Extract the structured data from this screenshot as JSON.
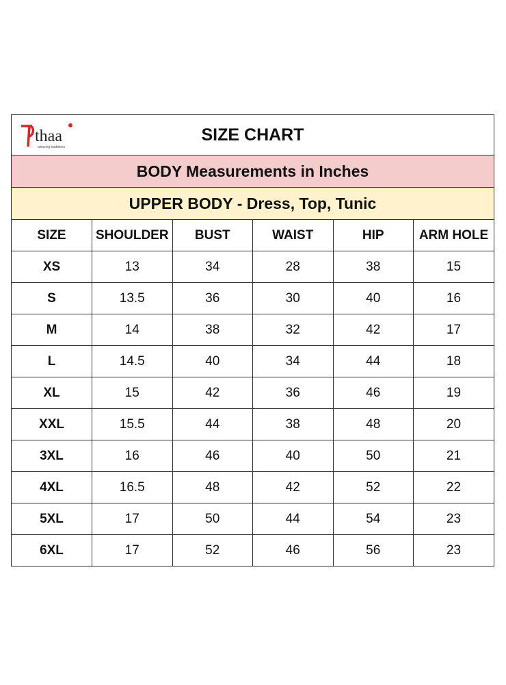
{
  "brand": {
    "logo_text": "प्thaa",
    "tagline": "weaving traditions",
    "accent_color": "#d7262b"
  },
  "title": "SIZE CHART",
  "subtitle": "BODY Measurements in Inches",
  "section": "UPPER BODY - Dress, Top, Tunic",
  "colors": {
    "subtitle_bg": "#f4cccc",
    "section_bg": "#fff2cc"
  },
  "columns": [
    "SIZE",
    "SHOULDER",
    "BUST",
    "WAIST",
    "HIP",
    "ARM HOLE"
  ],
  "rows": [
    [
      "XS",
      "13",
      "34",
      "28",
      "38",
      "15"
    ],
    [
      "S",
      "13.5",
      "36",
      "30",
      "40",
      "16"
    ],
    [
      "M",
      "14",
      "38",
      "32",
      "42",
      "17"
    ],
    [
      "L",
      "14.5",
      "40",
      "34",
      "44",
      "18"
    ],
    [
      "XL",
      "15",
      "42",
      "36",
      "46",
      "19"
    ],
    [
      "XXL",
      "15.5",
      "44",
      "38",
      "48",
      "20"
    ],
    [
      "3XL",
      "16",
      "46",
      "40",
      "50",
      "21"
    ],
    [
      "4XL",
      "16.5",
      "48",
      "42",
      "52",
      "22"
    ],
    [
      "5XL",
      "17",
      "50",
      "44",
      "54",
      "23"
    ],
    [
      "6XL",
      "17",
      "52",
      "46",
      "56",
      "23"
    ]
  ]
}
